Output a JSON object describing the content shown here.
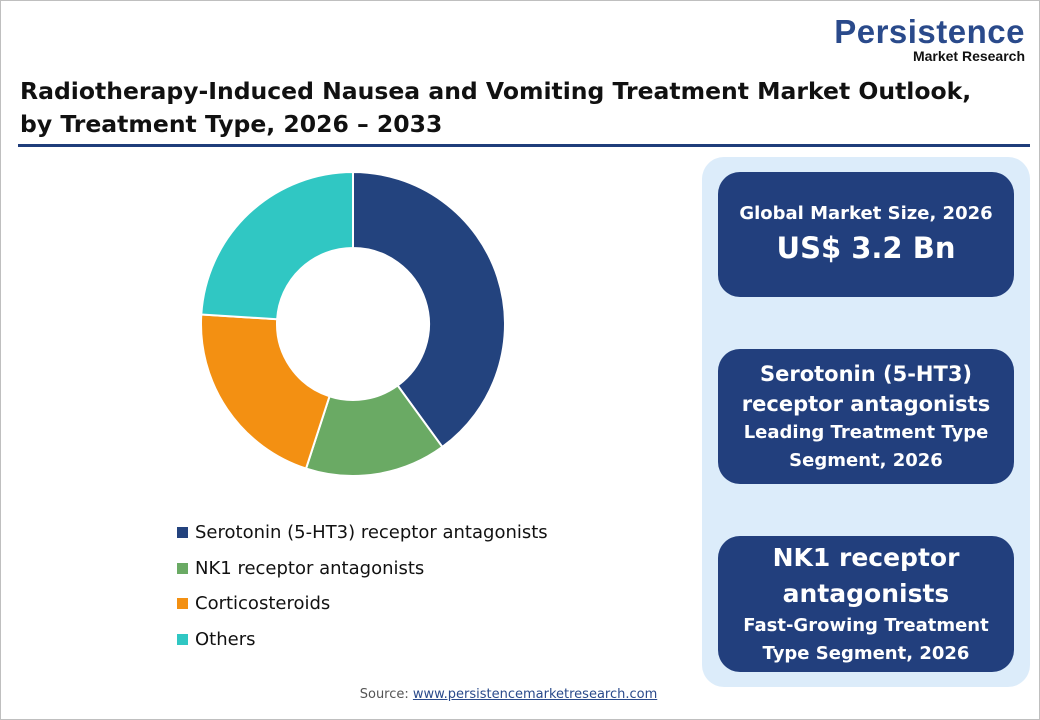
{
  "logo": {
    "main": "Persistence",
    "sub": "Market Research"
  },
  "title": {
    "line1": "Radiotherapy-Induced Nausea and Vomiting Treatment Market Outlook,",
    "line2": "by Treatment Type, 2026 – 2033"
  },
  "chart_data": {
    "type": "pie",
    "donut": true,
    "title": "Radiotherapy-Induced Nausea and Vomiting Treatment Market Outlook, by Treatment Type, 2026 – 2033",
    "categories": [
      "Serotonin (5-HT3) receptor antagonists",
      "NK1 receptor antagonists",
      "Corticosteroids",
      "Others"
    ],
    "values": [
      40,
      15,
      21,
      24
    ],
    "colors": [
      "#23437e",
      "#6aaa64",
      "#f39012",
      "#30c7c3"
    ],
    "legend": "bottom"
  },
  "cards": [
    {
      "l1": "Global Market Size, 2026",
      "l2": "US$ 3.2 Bn"
    },
    {
      "l1": "Serotonin (5-HT3)",
      "l2": "receptor antagonists",
      "l3": "Leading Treatment Type",
      "l4": "Segment, 2026"
    },
    {
      "l1": "NK1 receptor",
      "l2": "antagonists",
      "l3": "Fast-Growing Treatment",
      "l4": "Type Segment, 2026"
    }
  ],
  "source": {
    "label": "Source:",
    "link": "www.persistencemarketresearch.com"
  }
}
